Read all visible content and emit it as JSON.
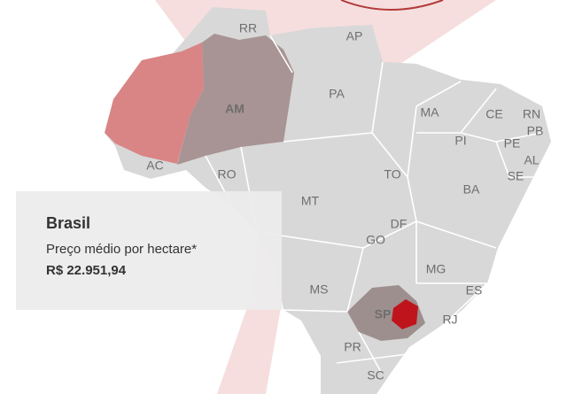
{
  "map": {
    "states": [
      {
        "label": "RR"
      },
      {
        "label": "AP"
      },
      {
        "label": "AM"
      },
      {
        "label": "PA"
      },
      {
        "label": "MA"
      },
      {
        "label": "CE"
      },
      {
        "label": "RN"
      },
      {
        "label": "PB"
      },
      {
        "label": "PI"
      },
      {
        "label": "PE"
      },
      {
        "label": "AL"
      },
      {
        "label": "SE"
      },
      {
        "label": "AC"
      },
      {
        "label": "RO"
      },
      {
        "label": "TO"
      },
      {
        "label": "BA"
      },
      {
        "label": "MT"
      },
      {
        "label": "DF"
      },
      {
        "label": "GO"
      },
      {
        "label": "MG"
      },
      {
        "label": "ES"
      },
      {
        "label": "MS"
      },
      {
        "label": "SP"
      },
      {
        "label": "RJ"
      },
      {
        "label": "PR"
      },
      {
        "label": "SC"
      }
    ]
  },
  "info": {
    "title": "Brasil",
    "subtitle": "Preço médio por hectare*",
    "price": "R$ 22.951,94"
  }
}
